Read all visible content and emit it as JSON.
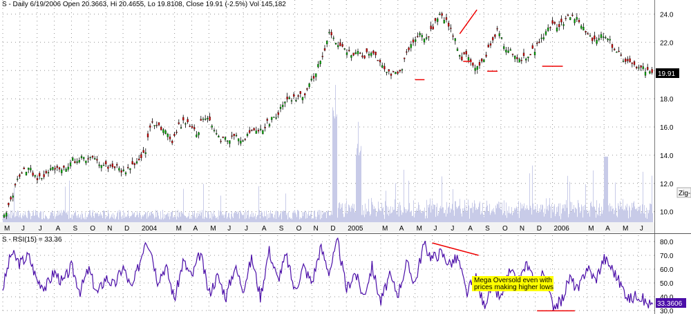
{
  "header": {
    "price_title": "S - Daily 6/19/2006 Open 20.3663, Hi 20.4655, Lo 19.8108, Close 19.91 (-2.5%) Vol 145,182",
    "rsi_title": "S - RSI(15) = 33.36"
  },
  "zigzag_tag": "Zig-",
  "colors": {
    "up_candle": "#00aa00",
    "down_candle": "#cc0000",
    "wick": "#000000",
    "volume": "#c8cbe8",
    "rsi_line": "#4b0ea8",
    "trend_line": "#ee0000",
    "last_price_bg": "#000000",
    "rsi_value_bg": "#4b0ea8",
    "annotation_bg": "#ffff00",
    "grid": "#909090"
  },
  "annotation": {
    "line1": "Mega Oversold even with",
    "line2": "prices making higher lows"
  },
  "chart_data": [
    {
      "type": "line",
      "subtype": "candlestick-with-volume",
      "title": "S - Daily 6/19/2006 Open 20.3663, Hi 20.4655, Lo 19.8108, Close 19.91 (-2.5%) Vol 145,182",
      "ylim": [
        9.3,
        24.8
      ],
      "y_ticks": [
        "10.0",
        "12.0",
        "14.0",
        "16.0",
        "18.0",
        "20.0",
        "22.0",
        "24.0"
      ],
      "y_tick_values": [
        10,
        12,
        14,
        16,
        18,
        20,
        22,
        24
      ],
      "last_price_label": "19.91",
      "x_ticks": [
        "M",
        "J",
        "J",
        "A",
        "S",
        "O",
        "N",
        "D",
        "2004",
        "M",
        "A",
        "M",
        "J",
        "J",
        "A",
        "S",
        "O",
        "N",
        "D",
        "2005",
        "M",
        "A",
        "M",
        "J",
        "J",
        "A",
        "S",
        "O",
        "N",
        "D",
        "2006",
        "M",
        "A",
        "M",
        "J"
      ],
      "x_tick_months": [
        0.0,
        1.0,
        2.0,
        3.0,
        4.0,
        5.0,
        6.0,
        7.0,
        8.0,
        10.0,
        11.0,
        12.0,
        13.0,
        14.0,
        15.0,
        16.0,
        17.0,
        18.0,
        19.0,
        20.0,
        22.0,
        23.0,
        24.0,
        25.0,
        26.0,
        27.0,
        28.0,
        29.0,
        30.0,
        31.0,
        32.0,
        34.0,
        35.0,
        36.0,
        37.0
      ],
      "x_range_months": [
        0,
        37.85
      ],
      "close_path": {
        "months": [
          0.0,
          0.5,
          1.0,
          1.5,
          2.0,
          2.5,
          3.0,
          3.5,
          4.0,
          5.0,
          6.0,
          6.5,
          7.0,
          7.5,
          8.0,
          8.3,
          8.6,
          9.0,
          9.5,
          9.8,
          10.2,
          10.7,
          11.0,
          11.3,
          11.6,
          12.0,
          12.5,
          13.0,
          13.5,
          14.0,
          14.5,
          15.0,
          15.5,
          16.0,
          16.5,
          17.0,
          17.5,
          18.0,
          18.5,
          19.0,
          19.3,
          19.6,
          20.0,
          20.5,
          21.0,
          21.5,
          22.0,
          22.5,
          23.0,
          23.5,
          24.0,
          24.3,
          24.6,
          25.0,
          25.4,
          25.8,
          26.0,
          26.3,
          26.6,
          27.0,
          27.4,
          27.7,
          28.0,
          28.4,
          28.8,
          29.2,
          29.5,
          29.8,
          30.2,
          30.6,
          31.0,
          31.4,
          31.8,
          32.2,
          32.6,
          33.0,
          33.5,
          34.0,
          34.5,
          35.0,
          35.3,
          35.6,
          35.9,
          36.2,
          36.6,
          37.0,
          37.4,
          37.85
        ],
        "closes": [
          9.6,
          11.0,
          12.9,
          13.0,
          12.3,
          12.6,
          13.2,
          13.0,
          13.6,
          13.8,
          13.2,
          13.2,
          12.8,
          13.3,
          13.6,
          14.4,
          16.4,
          16.2,
          15.5,
          15.0,
          16.0,
          16.5,
          16.0,
          15.5,
          16.8,
          16.6,
          15.2,
          15.1,
          15.3,
          15.2,
          15.6,
          15.8,
          16.4,
          17.0,
          17.8,
          18.0,
          18.3,
          19.5,
          20.8,
          22.7,
          22.0,
          21.6,
          21.3,
          21.2,
          21.0,
          21.4,
          20.5,
          19.8,
          19.6,
          21.2,
          22.4,
          22.6,
          22.3,
          22.9,
          24.1,
          23.5,
          22.9,
          22.3,
          20.8,
          21.2,
          20.1,
          20.3,
          21.0,
          21.8,
          23.0,
          21.6,
          21.5,
          20.8,
          20.8,
          21.2,
          21.6,
          22.4,
          23.1,
          23.2,
          23.4,
          23.9,
          23.5,
          22.4,
          22.2,
          22.6,
          22.0,
          21.5,
          21.0,
          20.7,
          20.3,
          20.3,
          20.0,
          19.91
        ]
      },
      "volume_note": "pale bars along lower part of price pane, spikes near 2005-D and 2006-M"
    },
    {
      "type": "line",
      "title": "S - RSI(15) = 33.36",
      "ylim": [
        29,
        85
      ],
      "y_ticks": [
        "30.0",
        "40.0",
        "50.0",
        "60.0",
        "70.0",
        "80.0"
      ],
      "y_tick_values": [
        30,
        40,
        50,
        60,
        70,
        80
      ],
      "last_value_label": "33.3606",
      "series": [
        {
          "months": [
            0.0,
            0.5,
            1.0,
            1.5,
            2.0,
            2.5,
            3.0,
            3.5,
            4.0,
            4.5,
            5.0,
            5.5,
            6.0,
            6.5,
            7.0,
            7.5,
            8.0,
            8.3,
            8.6,
            9.0,
            9.5,
            10.0,
            10.5,
            11.0,
            11.5,
            12.0,
            12.5,
            13.0,
            13.5,
            14.0,
            14.5,
            15.0,
            15.5,
            16.0,
            16.5,
            17.0,
            17.5,
            18.0,
            18.5,
            19.0,
            19.5,
            20.0,
            20.5,
            21.0,
            21.5,
            22.0,
            22.5,
            23.0,
            23.5,
            24.0,
            24.5,
            25.0,
            25.5,
            26.0,
            26.5,
            27.0,
            27.5,
            28.0,
            28.5,
            29.0,
            29.5,
            30.0,
            30.5,
            31.0,
            31.5,
            32.0,
            32.5,
            33.0,
            33.5,
            34.0,
            34.5,
            35.0,
            35.5,
            36.0,
            36.5,
            37.0,
            37.4,
            37.85
          ],
          "values": [
            46,
            72,
            64,
            70,
            52,
            47,
            58,
            50,
            62,
            44,
            60,
            42,
            54,
            48,
            62,
            45,
            66,
            82,
            76,
            52,
            62,
            38,
            66,
            54,
            72,
            42,
            55,
            40,
            62,
            46,
            68,
            40,
            74,
            52,
            70,
            44,
            62,
            50,
            76,
            58,
            80,
            45,
            58,
            40,
            62,
            36,
            55,
            42,
            64,
            50,
            78,
            68,
            72,
            64,
            68,
            42,
            55,
            34,
            48,
            38,
            58,
            50,
            64,
            48,
            58,
            34,
            36,
            54,
            44,
            62,
            52,
            68,
            60,
            48,
            38,
            42,
            36,
            33.36
          ]
        }
      ]
    }
  ]
}
